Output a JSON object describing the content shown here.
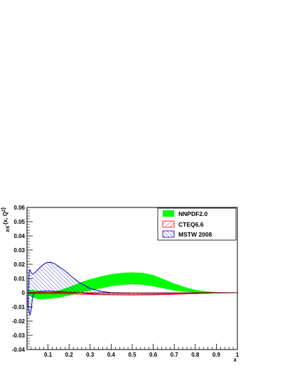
{
  "chart_data": {
    "type": "area",
    "xlabel": "x",
    "ylabel": "xs^{-}(x, Q^{2})",
    "xlim": [
      0,
      1
    ],
    "ylim": [
      -0.04,
      0.06
    ],
    "x_ticks": [
      0.1,
      0.2,
      0.3,
      0.4,
      0.5,
      0.6,
      0.7,
      0.8,
      0.9,
      1
    ],
    "y_ticks": [
      -0.04,
      -0.03,
      -0.02,
      -0.01,
      0,
      0.01,
      0.02,
      0.03,
      0.04,
      0.05,
      0.06
    ],
    "x_tick_labels": [
      "0.1",
      "0.2",
      "0.3",
      "0.4",
      "0.5",
      "0.6",
      "0.7",
      "0.8",
      "0.9",
      "1"
    ],
    "y_tick_labels": [
      "-0.04",
      "-0.03",
      "-0.02",
      "-0.01",
      "0",
      "0.01",
      "0.02",
      "0.03",
      "0.04",
      "0.05",
      "0.06"
    ],
    "legend_position": "top-right",
    "series": [
      {
        "name": "NNPDF2.0",
        "style": "solid",
        "color": "#00ff00",
        "x": [
          0.005,
          0.02,
          0.05,
          0.08,
          0.1,
          0.15,
          0.2,
          0.25,
          0.3,
          0.35,
          0.4,
          0.45,
          0.5,
          0.55,
          0.6,
          0.65,
          0.7,
          0.75,
          0.8,
          0.85,
          0.9,
          0.95,
          1.0
        ],
        "upper": [
          0.002,
          0.002,
          0.0015,
          0.001,
          0.0005,
          0.0015,
          0.004,
          0.007,
          0.0095,
          0.0115,
          0.013,
          0.014,
          0.0143,
          0.014,
          0.0125,
          0.0095,
          0.0065,
          0.004,
          0.002,
          0.001,
          0.0004,
          0.0001,
          0.0
        ],
        "lower": [
          -0.001,
          -0.003,
          -0.0045,
          -0.0045,
          -0.0043,
          -0.0035,
          -0.002,
          0.0,
          0.0015,
          0.003,
          0.0045,
          0.0055,
          0.006,
          0.0055,
          0.0045,
          0.003,
          0.0015,
          0.0007,
          0.0002,
          0.0,
          0.0,
          0.0,
          0.0
        ]
      },
      {
        "name": "CTEQ6.6",
        "style": "hatched",
        "color": "#ff0000",
        "x": [
          0.005,
          0.02,
          0.05,
          0.08,
          0.1,
          0.15,
          0.2,
          0.25,
          0.3,
          0.4,
          0.5,
          0.6,
          0.7,
          0.8,
          0.9,
          1.0
        ],
        "upper": [
          0.0,
          0.0002,
          0.0004,
          0.0004,
          0.0004,
          0.0003,
          0.0002,
          0.0,
          -0.0002,
          -0.0004,
          -0.0005,
          -0.0004,
          -0.0003,
          -0.0001,
          0.0,
          0.0
        ],
        "lower": [
          -0.0005,
          -0.0006,
          -0.0006,
          -0.0006,
          -0.0006,
          -0.0006,
          -0.0008,
          -0.001,
          -0.0012,
          -0.0015,
          -0.0016,
          -0.0015,
          -0.0011,
          -0.0006,
          -0.0002,
          0.0
        ]
      },
      {
        "name": "MSTW 2008",
        "style": "hatched",
        "color": "#0000cc",
        "x": [
          0.005,
          0.01,
          0.015,
          0.02,
          0.025,
          0.03,
          0.04,
          0.05,
          0.07,
          0.09,
          0.11,
          0.13,
          0.15,
          0.18,
          0.21,
          0.25,
          0.3,
          0.35,
          0.4,
          0.5,
          0.6,
          0.7,
          0.8,
          0.9,
          1.0
        ],
        "upper": [
          -0.005,
          0.015,
          0.016,
          0.014,
          0.013,
          0.0135,
          0.0145,
          0.016,
          0.019,
          0.021,
          0.0215,
          0.0205,
          0.0185,
          0.0155,
          0.0115,
          0.007,
          0.003,
          0.001,
          0.0,
          -0.0005,
          -0.0005,
          -0.0003,
          -0.0001,
          0.0,
          0.0
        ],
        "lower": [
          -0.009,
          -0.014,
          -0.0155,
          -0.012,
          -0.005,
          -0.0015,
          0.0,
          0.0005,
          0.001,
          0.0012,
          0.0012,
          0.001,
          0.0008,
          0.0005,
          0.0003,
          0.0,
          -0.0008,
          -0.0012,
          -0.0014,
          -0.0015,
          -0.0013,
          -0.001,
          -0.0006,
          -0.0002,
          0.0
        ]
      }
    ]
  }
}
